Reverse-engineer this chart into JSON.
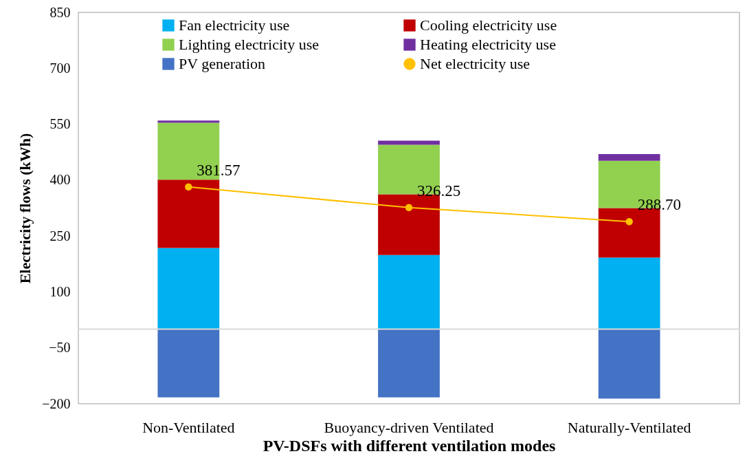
{
  "chart_data": {
    "type": "bar",
    "stacked": true,
    "xlabel": "PV-DSFs with different ventilation modes",
    "ylabel": "Electricity flows (kWh)",
    "categories": [
      "Non-Ventilated",
      "Buoyancy-driven Ventilated",
      "Naturally-Ventilated"
    ],
    "series": [
      {
        "name": "Fan electricity use",
        "color": "#00b0f0",
        "values": [
          218,
          199,
          192
        ]
      },
      {
        "name": "Cooling electricity use",
        "color": "#c00000",
        "values": [
          183,
          163,
          133
        ]
      },
      {
        "name": "Lighting electricity use",
        "color": "#92d050",
        "values": [
          153,
          133,
          127
        ]
      },
      {
        "name": "Heating electricity use",
        "color": "#7030a0",
        "values": [
          6,
          11,
          18
        ]
      },
      {
        "name": "PV generation",
        "color": "#4472c4",
        "values": [
          -183,
          -183,
          -186
        ]
      },
      {
        "name": "Net electricity use",
        "type": "line",
        "color": "#ffc000",
        "marker": "circle",
        "values": [
          381.57,
          326.25,
          288.7
        ],
        "value_labels": [
          "381.57",
          "326.25",
          "288.70"
        ]
      }
    ],
    "ylim": [
      -200,
      850
    ],
    "yticks": [
      -200,
      -50,
      100,
      250,
      400,
      550,
      700,
      850
    ],
    "grid": false,
    "legend": "top",
    "ref_lines": [
      {
        "axis": "y",
        "value": 0,
        "color": "#d9d9d9"
      }
    ]
  }
}
